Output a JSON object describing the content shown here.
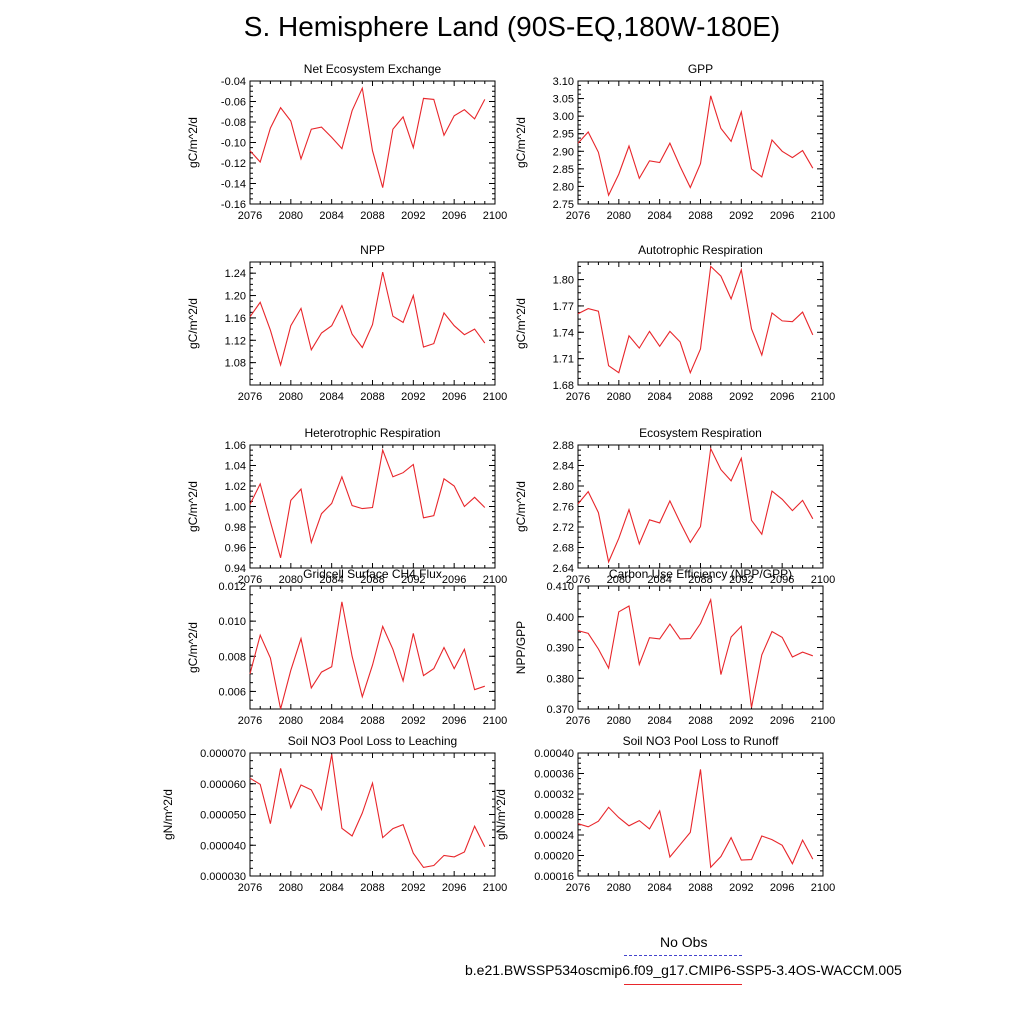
{
  "title": "S. Hemisphere Land (90S-EQ,180W-180E)",
  "legend": [
    {
      "label": "No Obs",
      "color": "#4444cc",
      "style": "dashed"
    },
    {
      "label": "b.e21.BWSSP534oscmip6.f09_g17.CMIP6-SSP5-3.4OS-WACCM.005",
      "color": "#e8262b",
      "style": "solid"
    }
  ],
  "chart_data": [
    {
      "type": "line",
      "title": "Net Ecosystem Exchange",
      "ylabel": "gC/m^2/d",
      "xlim": [
        2076,
        2100
      ],
      "ylim": [
        -0.16,
        -0.04
      ],
      "xticks": [
        "2076",
        "2080",
        "2084",
        "2088",
        "2092",
        "2096",
        "2100"
      ],
      "yticks": [
        "-0.16",
        "-0.14",
        "-0.12",
        "-0.10",
        "-0.08",
        "-0.06",
        "-0.04"
      ],
      "x": [
        2076,
        2077,
        2078,
        2079,
        2080,
        2081,
        2082,
        2083,
        2084,
        2085,
        2086,
        2087,
        2088,
        2089,
        2090,
        2091,
        2092,
        2093,
        2094,
        2095,
        2096,
        2097,
        2098,
        2099
      ],
      "series": [
        {
          "color": "#e8262b",
          "values": [
            -0.108,
            -0.119,
            -0.086,
            -0.066,
            -0.079,
            -0.116,
            -0.087,
            -0.085,
            -0.095,
            -0.106,
            -0.069,
            -0.047,
            -0.108,
            -0.144,
            -0.087,
            -0.075,
            -0.105,
            -0.057,
            -0.058,
            -0.093,
            -0.074,
            -0.068,
            -0.077,
            -0.058
          ]
        }
      ]
    },
    {
      "type": "line",
      "title": "GPP",
      "ylabel": "gC/m^2/d",
      "xlim": [
        2076,
        2100
      ],
      "ylim": [
        2.75,
        3.1
      ],
      "xticks": [
        "2076",
        "2080",
        "2084",
        "2088",
        "2092",
        "2096",
        "2100"
      ],
      "yticks": [
        "2.75",
        "2.80",
        "2.85",
        "2.90",
        "2.95",
        "3.00",
        "3.05",
        "3.10"
      ],
      "x": [
        2076,
        2077,
        2078,
        2079,
        2080,
        2081,
        2082,
        2083,
        2084,
        2085,
        2086,
        2087,
        2088,
        2089,
        2090,
        2091,
        2092,
        2093,
        2094,
        2095,
        2096,
        2097,
        2098,
        2099
      ],
      "series": [
        {
          "color": "#e8262b",
          "values": [
            2.923,
            2.955,
            2.897,
            2.775,
            2.835,
            2.915,
            2.823,
            2.873,
            2.868,
            2.923,
            2.857,
            2.797,
            2.865,
            3.058,
            2.965,
            2.928,
            3.012,
            2.85,
            2.827,
            2.932,
            2.9,
            2.882,
            2.902,
            2.852
          ]
        }
      ]
    },
    {
      "type": "line",
      "title": "NPP",
      "ylabel": "gC/m^2/d",
      "xlim": [
        2076,
        2100
      ],
      "ylim": [
        1.04,
        1.26
      ],
      "xticks": [
        "2076",
        "2080",
        "2084",
        "2088",
        "2092",
        "2096",
        "2100"
      ],
      "yticks": [
        "1.08",
        "1.12",
        "1.16",
        "1.20",
        "1.24"
      ],
      "x": [
        2076,
        2077,
        2078,
        2079,
        2080,
        2081,
        2082,
        2083,
        2084,
        2085,
        2086,
        2087,
        2088,
        2089,
        2090,
        2091,
        2092,
        2093,
        2094,
        2095,
        2096,
        2097,
        2098,
        2099
      ],
      "series": [
        {
          "color": "#e8262b",
          "values": [
            1.162,
            1.188,
            1.138,
            1.076,
            1.146,
            1.177,
            1.103,
            1.133,
            1.146,
            1.182,
            1.131,
            1.107,
            1.148,
            1.242,
            1.163,
            1.152,
            1.2,
            1.108,
            1.114,
            1.169,
            1.146,
            1.13,
            1.14,
            1.115
          ]
        }
      ]
    },
    {
      "type": "line",
      "title": "Autotrophic Respiration",
      "ylabel": "gC/m^2/d",
      "xlim": [
        2076,
        2100
      ],
      "ylim": [
        1.68,
        1.82
      ],
      "xticks": [
        "2076",
        "2080",
        "2084",
        "2088",
        "2092",
        "2096",
        "2100"
      ],
      "yticks": [
        "1.68",
        "1.71",
        "1.74",
        "1.77",
        "1.80"
      ],
      "x": [
        2076,
        2077,
        2078,
        2079,
        2080,
        2081,
        2082,
        2083,
        2084,
        2085,
        2086,
        2087,
        2088,
        2089,
        2090,
        2091,
        2092,
        2093,
        2094,
        2095,
        2096,
        2097,
        2098,
        2099
      ],
      "series": [
        {
          "color": "#e8262b",
          "values": [
            1.761,
            1.767,
            1.764,
            1.702,
            1.694,
            1.736,
            1.722,
            1.741,
            1.724,
            1.741,
            1.729,
            1.694,
            1.721,
            1.815,
            1.804,
            1.778,
            1.811,
            1.744,
            1.714,
            1.762,
            1.753,
            1.752,
            1.763,
            1.737
          ]
        }
      ]
    },
    {
      "type": "line",
      "title": "Heterotrophic Respiration",
      "ylabel": "gC/m^2/d",
      "xlim": [
        2076,
        2100
      ],
      "ylim": [
        0.94,
        1.06
      ],
      "xticks": [
        "2076",
        "2080",
        "2084",
        "2088",
        "2092",
        "2096",
        "2100"
      ],
      "yticks": [
        "0.94",
        "0.96",
        "0.98",
        "1.00",
        "1.02",
        "1.04",
        "1.06"
      ],
      "x": [
        2076,
        2077,
        2078,
        2079,
        2080,
        2081,
        2082,
        2083,
        2084,
        2085,
        2086,
        2087,
        2088,
        2089,
        2090,
        2091,
        2092,
        2093,
        2094,
        2095,
        2096,
        2097,
        2098,
        2099
      ],
      "series": [
        {
          "color": "#e8262b",
          "values": [
            1.002,
            1.022,
            0.985,
            0.95,
            1.006,
            1.017,
            0.965,
            0.993,
            1.003,
            1.029,
            1.001,
            0.998,
            0.999,
            1.055,
            1.029,
            1.033,
            1.041,
            0.989,
            0.991,
            1.027,
            1.02,
            1.0,
            1.009,
            0.999
          ]
        }
      ]
    },
    {
      "type": "line",
      "title": "Ecosystem Respiration",
      "ylabel": "gC/m^2/d",
      "xlim": [
        2076,
        2100
      ],
      "ylim": [
        2.64,
        2.88
      ],
      "xticks": [
        "2076",
        "2080",
        "2084",
        "2088",
        "2092",
        "2096",
        "2100"
      ],
      "yticks": [
        "2.64",
        "2.68",
        "2.72",
        "2.76",
        "2.80",
        "2.84",
        "2.88"
      ],
      "x": [
        2076,
        2077,
        2078,
        2079,
        2080,
        2081,
        2082,
        2083,
        2084,
        2085,
        2086,
        2087,
        2088,
        2089,
        2090,
        2091,
        2092,
        2093,
        2094,
        2095,
        2096,
        2097,
        2098,
        2099
      ],
      "series": [
        {
          "color": "#e8262b",
          "values": [
            2.765,
            2.789,
            2.748,
            2.652,
            2.698,
            2.754,
            2.687,
            2.734,
            2.728,
            2.771,
            2.729,
            2.69,
            2.721,
            2.873,
            2.832,
            2.81,
            2.854,
            2.733,
            2.706,
            2.79,
            2.774,
            2.752,
            2.772,
            2.736
          ]
        }
      ]
    },
    {
      "type": "line",
      "title": "Gridcell Surface CH4 Flux",
      "ylabel": "gC/m^2/d",
      "xlim": [
        2076,
        2100
      ],
      "ylim": [
        0.005,
        0.012
      ],
      "xticks": [
        "2076",
        "2080",
        "2084",
        "2088",
        "2092",
        "2096",
        "2100"
      ],
      "yticks": [
        "0.006",
        "0.008",
        "0.010",
        "0.012"
      ],
      "x": [
        2076,
        2077,
        2078,
        2079,
        2080,
        2081,
        2082,
        2083,
        2084,
        2085,
        2086,
        2087,
        2088,
        2089,
        2090,
        2091,
        2092,
        2093,
        2094,
        2095,
        2096,
        2097,
        2098,
        2099
      ],
      "series": [
        {
          "color": "#e8262b",
          "values": [
            0.007,
            0.0092,
            0.0079,
            0.005,
            0.0072,
            0.009,
            0.0062,
            0.0071,
            0.0074,
            0.0111,
            0.008,
            0.0057,
            0.0075,
            0.0097,
            0.0084,
            0.0066,
            0.0093,
            0.0069,
            0.0073,
            0.0085,
            0.0073,
            0.0084,
            0.0061,
            0.0063
          ]
        }
      ]
    },
    {
      "type": "line",
      "title": "Carbon Use Efficiency (NPP/GPP)",
      "ylabel": "NPP/GPP",
      "xlim": [
        2076,
        2100
      ],
      "ylim": [
        0.37,
        0.41
      ],
      "xticks": [
        "2076",
        "2080",
        "2084",
        "2088",
        "2092",
        "2096",
        "2100"
      ],
      "yticks": [
        "0.370",
        "0.380",
        "0.390",
        "0.400",
        "0.410"
      ],
      "x": [
        2076,
        2077,
        2078,
        2079,
        2080,
        2081,
        2082,
        2083,
        2084,
        2085,
        2086,
        2087,
        2088,
        2089,
        2090,
        2091,
        2092,
        2093,
        2094,
        2095,
        2096,
        2097,
        2098,
        2099
      ],
      "series": [
        {
          "color": "#e8262b",
          "values": [
            0.3955,
            0.3946,
            0.3895,
            0.3833,
            0.4016,
            0.4035,
            0.3845,
            0.3932,
            0.3928,
            0.3976,
            0.3928,
            0.3929,
            0.3978,
            0.4055,
            0.3812,
            0.3934,
            0.3969,
            0.3705,
            0.3876,
            0.3952,
            0.3933,
            0.3869,
            0.3885,
            0.3873
          ]
        }
      ]
    },
    {
      "type": "line",
      "title": "Soil NO3 Pool Loss to Leaching",
      "ylabel": "gN/m^2/d",
      "xlim": [
        2076,
        2100
      ],
      "ylim": [
        3e-05,
        7e-05
      ],
      "xticks": [
        "2076",
        "2080",
        "2084",
        "2088",
        "2092",
        "2096",
        "2100"
      ],
      "yticks": [
        "0.000030",
        "0.000040",
        "0.000050",
        "0.000060",
        "0.000070"
      ],
      "x": [
        2076,
        2077,
        2078,
        2079,
        2080,
        2081,
        2082,
        2083,
        2084,
        2085,
        2086,
        2087,
        2088,
        2089,
        2090,
        2091,
        2092,
        2093,
        2094,
        2095,
        2096,
        2097,
        2098,
        2099
      ],
      "series": [
        {
          "color": "#e8262b",
          "values": [
            6.18e-05,
            5.98e-05,
            4.7e-05,
            6.5e-05,
            5.22e-05,
            5.96e-05,
            5.8e-05,
            5.16e-05,
            6.95e-05,
            4.55e-05,
            4.3e-05,
            5.05e-05,
            6.02e-05,
            4.25e-05,
            4.54e-05,
            4.67e-05,
            3.74e-05,
            3.28e-05,
            3.34e-05,
            3.67e-05,
            3.62e-05,
            3.78e-05,
            4.62e-05,
            3.95e-05
          ]
        }
      ]
    },
    {
      "type": "line",
      "title": "Soil NO3 Pool Loss to Runoff",
      "ylabel": "gN/m^2/d",
      "xlim": [
        2076,
        2100
      ],
      "ylim": [
        0.00016,
        0.0004
      ],
      "xticks": [
        "2076",
        "2080",
        "2084",
        "2088",
        "2092",
        "2096",
        "2100"
      ],
      "yticks": [
        "0.00016",
        "0.00020",
        "0.00024",
        "0.00028",
        "0.00032",
        "0.00036",
        "0.00040"
      ],
      "x": [
        2076,
        2077,
        2078,
        2079,
        2080,
        2081,
        2082,
        2083,
        2084,
        2085,
        2086,
        2087,
        2088,
        2089,
        2090,
        2091,
        2092,
        2093,
        2094,
        2095,
        2096,
        2097,
        2098,
        2099
      ],
      "series": [
        {
          "color": "#e8262b",
          "values": [
            0.000262,
            0.000256,
            0.000267,
            0.000294,
            0.000274,
            0.000258,
            0.000268,
            0.000252,
            0.000287,
            0.000197,
            0.000221,
            0.000245,
            0.000368,
            0.000177,
            0.000198,
            0.000235,
            0.000191,
            0.000192,
            0.000238,
            0.000231,
            0.00022,
            0.000184,
            0.00023,
            0.000193
          ]
        }
      ]
    }
  ]
}
